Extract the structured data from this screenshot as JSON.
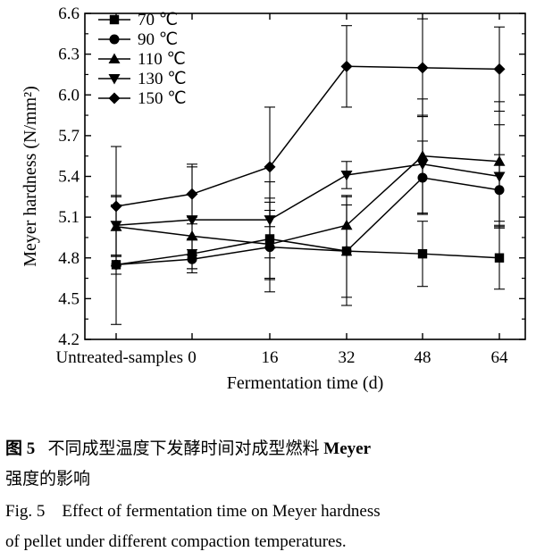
{
  "chart_data": {
    "type": "line",
    "xlabel": "Fermentation time (d)",
    "ylabel": "Meyer hardness (N/mm²)",
    "categories": [
      "Untreated-samples",
      "0",
      "16",
      "32",
      "48",
      "64"
    ],
    "ylim": [
      4.2,
      6.6
    ],
    "yticks": [
      "4.2",
      "4.5",
      "4.8",
      "5.1",
      "5.4",
      "5.7",
      "6.0",
      "6.3",
      "6.6"
    ],
    "legend_position": "top-left",
    "series": [
      {
        "name": "70 ℃",
        "marker": "square",
        "values": [
          4.75,
          4.83,
          4.94,
          4.85,
          4.83,
          4.8
        ],
        "errors": [
          0.44,
          0.11,
          0.3,
          0.4,
          0.24,
          0.23
        ]
      },
      {
        "name": "90 ℃",
        "marker": "circle",
        "values": [
          4.75,
          4.79,
          4.88,
          4.85,
          5.39,
          5.3
        ],
        "errors": [
          0.07,
          0.07,
          0.33,
          0.34,
          0.27,
          0.26
        ]
      },
      {
        "name": "110 ℃",
        "marker": "triangle-up",
        "values": [
          5.03,
          4.96,
          4.9,
          5.04,
          5.55,
          5.51
        ],
        "errors": [
          0.22,
          0.14,
          0.25,
          0.22,
          0.42,
          0.44
        ]
      },
      {
        "name": "130 ℃",
        "marker": "triangle-down",
        "values": [
          5.04,
          5.08,
          5.08,
          5.41,
          5.49,
          5.4
        ],
        "errors": [
          0.22,
          0.39,
          0.28,
          0.1,
          0.36,
          0.38
        ]
      },
      {
        "name": "150 ℃",
        "marker": "diamond",
        "values": [
          5.18,
          5.27,
          5.47,
          6.21,
          6.2,
          6.19
        ],
        "errors": [
          0.44,
          0.22,
          0.44,
          0.3,
          0.36,
          0.31
        ]
      }
    ]
  },
  "caption": {
    "cn_label": "图 5",
    "cn_text_line1_pre": "不同成型温度下发酵时间对成型燃料",
    "cn_bold": "Meyer",
    "cn_text_line2": "强度的影响",
    "en_line1": "Fig. 5    Effect of fermentation time on Meyer hardness",
    "en_line2": "of pellet under different compaction temperatures."
  }
}
